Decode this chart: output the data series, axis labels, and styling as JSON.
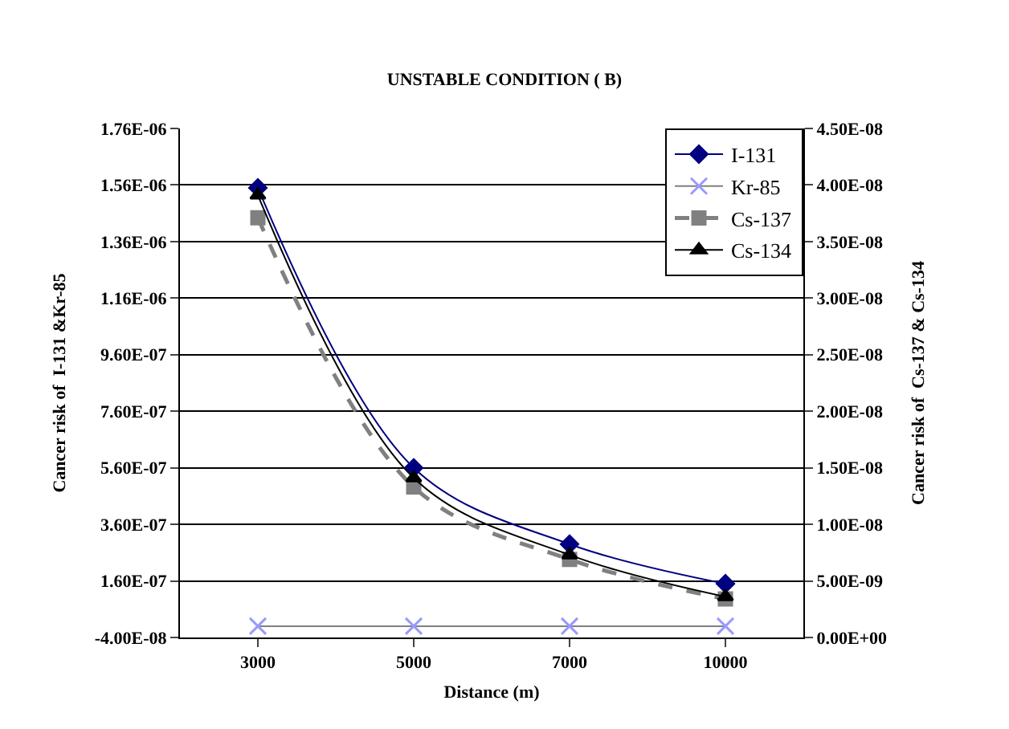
{
  "chart_data": {
    "type": "line",
    "title": "UNSTABLE CONDITION ( B)",
    "xlabel": "Distance (m)",
    "ylabel": "Cancer risk of  I-131 &Kr-85",
    "y2label": "Cancer risk of  Cs-137 & Cs-134",
    "categories": [
      "3000",
      "5000",
      "7000",
      "10000"
    ],
    "series": [
      {
        "name": "I-131",
        "color": "#000080",
        "marker": "diamond",
        "line_style": "solid",
        "values": [
          1.55e-06,
          5.6e-07,
          2.9e-07,
          1.5e-07
        ]
      },
      {
        "name": "Kr-85",
        "color": "#9999ff",
        "marker": "cross",
        "line_style": "solid",
        "values": [
          0,
          0,
          0,
          0
        ]
      },
      {
        "name": "Cs-137",
        "color": "#808080",
        "marker": "square",
        "line_style": "dashed",
        "axis": "y2",
        "values": [
          3.71e-08,
          1.33e-08,
          6.9e-09,
          3.4e-09
        ]
      },
      {
        "name": "Cs-134",
        "color": "#000000",
        "marker": "triangle",
        "line_style": "solid",
        "axis": "y2",
        "values": [
          3.91e-08,
          1.41e-08,
          7.3e-09,
          3.6e-09
        ]
      }
    ],
    "ylim": [
      -4e-08,
      1.76e-06
    ],
    "yticks": [
      {
        "value": -4e-08,
        "label": "-4.00E-08"
      },
      {
        "value": 1.6e-07,
        "label": "1.60E-07"
      },
      {
        "value": 3.6e-07,
        "label": "3.60E-07"
      },
      {
        "value": 5.6e-07,
        "label": "5.60E-07"
      },
      {
        "value": 7.6e-07,
        "label": "7.60E-07"
      },
      {
        "value": 9.6e-07,
        "label": "9.60E-07"
      },
      {
        "value": 1.16e-06,
        "label": "1.16E-06"
      },
      {
        "value": 1.36e-06,
        "label": "1.36E-06"
      },
      {
        "value": 1.56e-06,
        "label": "1.56E-06"
      },
      {
        "value": 1.76e-06,
        "label": "1.76E-06"
      }
    ],
    "y2lim": [
      0,
      4.5e-08
    ],
    "y2ticks": [
      {
        "value": 0,
        "label": "0.00E+00"
      },
      {
        "value": 5e-09,
        "label": "5.00E-09"
      },
      {
        "value": 1e-08,
        "label": "1.00E-08"
      },
      {
        "value": 1.5e-08,
        "label": "1.50E-08"
      },
      {
        "value": 2e-08,
        "label": "2.00E-08"
      },
      {
        "value": 2.5e-08,
        "label": "2.50E-08"
      },
      {
        "value": 3e-08,
        "label": "3.00E-08"
      },
      {
        "value": 3.5e-08,
        "label": "3.50E-08"
      },
      {
        "value": 4e-08,
        "label": "4.00E-08"
      },
      {
        "value": 4.5e-08,
        "label": "4.50E-08"
      }
    ],
    "grid": "y",
    "legend": "top right"
  }
}
